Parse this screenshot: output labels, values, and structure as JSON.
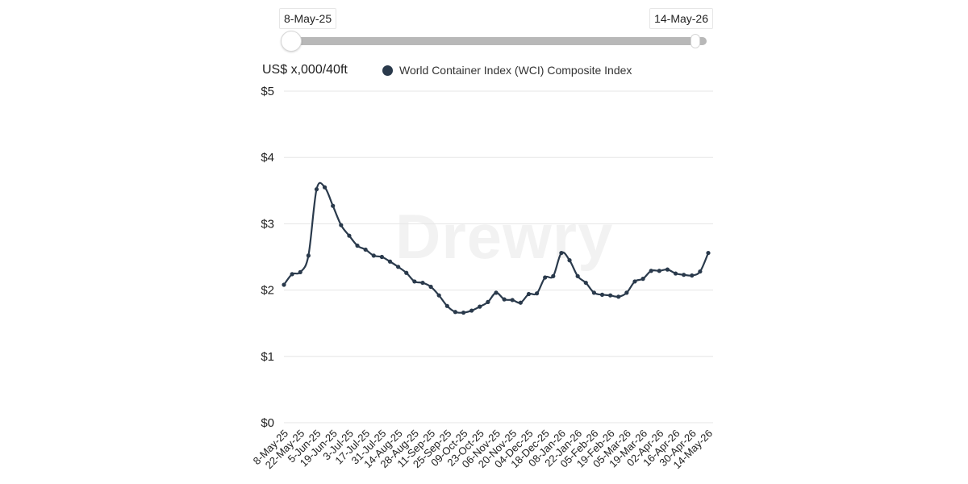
{
  "range": {
    "start_label": "8-May-25",
    "end_label": "14-May-26",
    "start_fraction": 0.0,
    "end_fraction": 1.0
  },
  "unit_label": "US$ x,000/40ft",
  "legend": {
    "label": "World Container Index (WCI) Composite Index",
    "color": "#2a3a4c"
  },
  "watermark": "Drewry",
  "chart_data": {
    "type": "line",
    "title": "",
    "xlabel": "",
    "ylabel": "US$ x,000/40ft",
    "ylim": [
      0,
      5
    ],
    "yticks": [
      0,
      1,
      2,
      3,
      4,
      5
    ],
    "ytick_labels": [
      "$0",
      "$1",
      "$2",
      "$3",
      "$4",
      "$5"
    ],
    "grid": true,
    "legend_position": "top",
    "x_tick_labels": [
      "8-May-25",
      "22-May-25",
      "5-Jun-25",
      "19-Jun-25",
      "3-Jul-25",
      "17-Jul-25",
      "31-Jul-25",
      "14-Aug-25",
      "28-Aug-25",
      "11-Sep-25",
      "25-Sep-25",
      "09-Oct-25",
      "23-Oct-25",
      "06-Nov-25",
      "20-Nov-25",
      "04-Dec-25",
      "18-Dec-25",
      "08-Jan-26",
      "22-Jan-26",
      "05-Feb-26",
      "19-Feb-26",
      "05-Mar-26",
      "19-Mar-26",
      "02-Apr-26",
      "16-Apr-26",
      "30-Apr-26",
      "14-May-26"
    ],
    "series": [
      {
        "name": "World Container Index (WCI) Composite Index",
        "color": "#2a3a4c",
        "values": [
          2.08,
          2.24,
          2.27,
          2.52,
          3.52,
          3.55,
          3.27,
          2.98,
          2.82,
          2.67,
          2.61,
          2.52,
          2.5,
          2.43,
          2.35,
          2.26,
          2.13,
          2.11,
          2.05,
          1.92,
          1.76,
          1.67,
          1.66,
          1.69,
          1.75,
          1.82,
          1.96,
          1.86,
          1.85,
          1.81,
          1.94,
          1.95,
          2.19,
          2.21,
          2.56,
          2.45,
          2.21,
          2.11,
          1.96,
          1.93,
          1.92,
          1.9,
          1.96,
          2.13,
          2.17,
          2.29,
          2.29,
          2.31,
          2.25,
          2.23,
          2.22,
          2.28,
          2.56
        ]
      }
    ]
  }
}
